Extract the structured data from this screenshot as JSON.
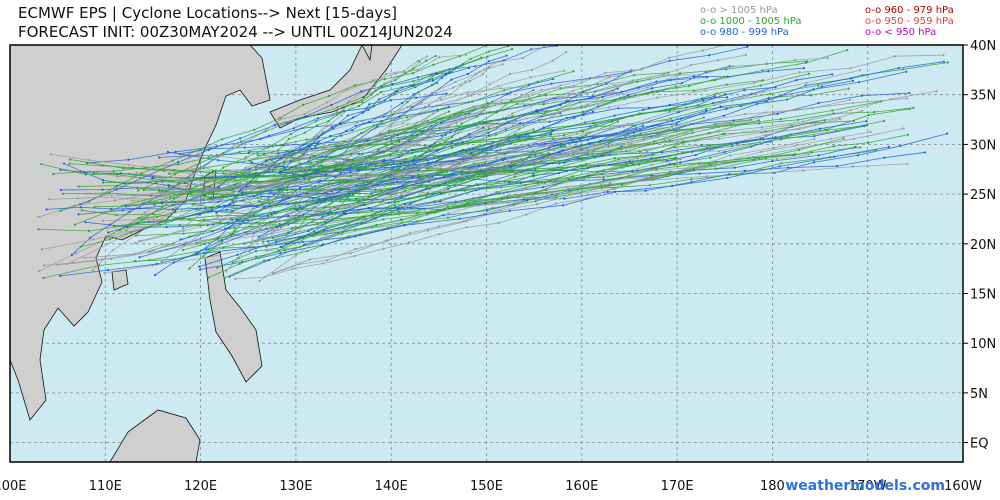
{
  "header": {
    "title_line1": "ECMWF EPS | Cyclone Locations--> Next [15-days]",
    "title_line2": "FORECAST INIT: 00Z30MAY2024 --> UNTIL 00Z14JUN2024"
  },
  "legend": [
    {
      "label": "o-o > 1005 hPa",
      "color": "#9a9a9a"
    },
    {
      "label": "o-o 1000 - 1005 hPa",
      "color": "#2ea52e"
    },
    {
      "label": "o-o 980 - 999 hPa",
      "color": "#2060d8"
    },
    {
      "label": "o-o 960 - 979 hPa",
      "color": "#b00000"
    },
    {
      "label": "o-o 950 - 959 hPa",
      "color": "#e04040"
    },
    {
      "label": "o-o < 950 hPa",
      "color": "#c000c0"
    }
  ],
  "map": {
    "longitude_labels": [
      "100E",
      "110E",
      "120E",
      "130E",
      "140E",
      "150E",
      "160E",
      "170E",
      "180",
      "170W",
      "160W"
    ],
    "latitude_labels": [
      "40N",
      "35N",
      "30N",
      "25N",
      "20N",
      "15N",
      "10N",
      "5N",
      "EQ"
    ]
  },
  "watermark": "weathermodels.com"
}
